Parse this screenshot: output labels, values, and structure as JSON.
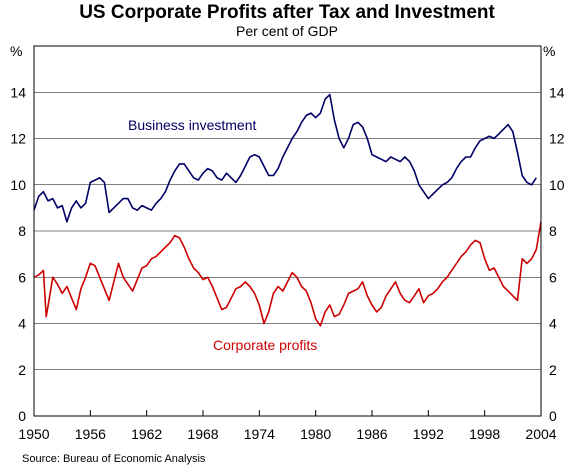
{
  "chart_data": {
    "type": "line",
    "title": "US Corporate Profits after Tax and Investment",
    "subtitle": "Per cent of GDP",
    "y_unit_left": "%",
    "y_unit_right": "%",
    "source": "Source: Bureau of Economic Analysis",
    "xlim": [
      1950,
      2004
    ],
    "ylim": [
      0,
      16
    ],
    "x_ticks": [
      "1950",
      "1956",
      "1962",
      "1968",
      "1974",
      "1980",
      "1986",
      "1992",
      "1998",
      "2004"
    ],
    "y_ticks": [
      "0",
      "2",
      "4",
      "6",
      "8",
      "10",
      "12",
      "14"
    ],
    "grid": true,
    "colors": {
      "investment": "#000066",
      "profits": "#cc0000",
      "grid": "#000000"
    },
    "series": [
      {
        "name": "Business investment",
        "key": "investment",
        "x": [
          1950.0,
          1950.5,
          1951.0,
          1951.5,
          1952.0,
          1952.5,
          1953.0,
          1953.5,
          1954.0,
          1954.5,
          1955.0,
          1955.5,
          1956.0,
          1956.5,
          1957.0,
          1957.5,
          1958.0,
          1958.5,
          1959.0,
          1959.5,
          1960.0,
          1960.5,
          1961.0,
          1961.5,
          1962.0,
          1962.5,
          1963.0,
          1963.5,
          1964.0,
          1964.5,
          1965.0,
          1965.5,
          1966.0,
          1966.5,
          1967.0,
          1967.5,
          1968.0,
          1968.5,
          1969.0,
          1969.5,
          1970.0,
          1970.5,
          1971.0,
          1971.5,
          1972.0,
          1972.5,
          1973.0,
          1973.5,
          1974.0,
          1974.5,
          1975.0,
          1975.5,
          1976.0,
          1976.5,
          1977.0,
          1977.5,
          1978.0,
          1978.5,
          1979.0,
          1979.5,
          1980.0,
          1980.5,
          1981.0,
          1981.5,
          1982.0,
          1982.5,
          1983.0,
          1983.5,
          1984.0,
          1984.5,
          1985.0,
          1985.5,
          1986.0,
          1986.5,
          1987.0,
          1987.5,
          1988.0,
          1988.5,
          1989.0,
          1989.5,
          1990.0,
          1990.5,
          1991.0,
          1991.5,
          1992.0,
          1992.5,
          1993.0,
          1993.5,
          1994.0,
          1994.5,
          1995.0,
          1995.5,
          1996.0,
          1996.5,
          1997.0,
          1997.5,
          1998.0,
          1998.5,
          1999.0,
          1999.5,
          2000.0,
          2000.5,
          2001.0,
          2001.5,
          2002.0,
          2002.5,
          2003.0,
          2003.5
        ],
        "values": [
          8.9,
          9.5,
          9.7,
          9.3,
          9.4,
          9.0,
          9.1,
          8.4,
          9.0,
          9.3,
          9.0,
          9.2,
          10.1,
          10.2,
          10.3,
          10.1,
          8.8,
          9.0,
          9.2,
          9.4,
          9.4,
          9.0,
          8.9,
          9.1,
          9.0,
          8.9,
          9.2,
          9.4,
          9.7,
          10.2,
          10.6,
          10.9,
          10.9,
          10.6,
          10.3,
          10.2,
          10.5,
          10.7,
          10.6,
          10.3,
          10.2,
          10.5,
          10.3,
          10.1,
          10.4,
          10.8,
          11.2,
          11.3,
          11.2,
          10.8,
          10.4,
          10.4,
          10.7,
          11.2,
          11.6,
          12.0,
          12.3,
          12.7,
          13.0,
          13.1,
          12.9,
          13.1,
          13.7,
          13.9,
          12.8,
          12.0,
          11.6,
          12.0,
          12.6,
          12.7,
          12.5,
          12.0,
          11.3,
          11.2,
          11.1,
          11.0,
          11.2,
          11.1,
          11.0,
          11.2,
          11.0,
          10.6,
          10.0,
          9.7,
          9.4,
          9.6,
          9.8,
          10.0,
          10.1,
          10.3,
          10.7,
          11.0,
          11.2,
          11.2,
          11.6,
          11.9,
          12.0,
          12.1,
          12.0,
          12.2,
          12.4,
          12.6,
          12.3,
          11.4,
          10.4,
          10.1,
          10.0,
          10.3
        ]
      },
      {
        "name": "Corporate profits",
        "key": "profits",
        "x": [
          1950.0,
          1950.5,
          1951.0,
          1951.3,
          1951.6,
          1952.0,
          1952.5,
          1953.0,
          1953.5,
          1954.0,
          1954.5,
          1955.0,
          1955.5,
          1956.0,
          1956.5,
          1957.0,
          1957.5,
          1958.0,
          1958.5,
          1959.0,
          1959.5,
          1960.0,
          1960.5,
          1961.0,
          1961.5,
          1962.0,
          1962.5,
          1963.0,
          1963.5,
          1964.0,
          1964.5,
          1965.0,
          1965.5,
          1966.0,
          1966.5,
          1967.0,
          1967.5,
          1968.0,
          1968.5,
          1969.0,
          1969.5,
          1970.0,
          1970.5,
          1971.0,
          1971.5,
          1972.0,
          1972.5,
          1973.0,
          1973.5,
          1974.0,
          1974.5,
          1975.0,
          1975.5,
          1976.0,
          1976.5,
          1977.0,
          1977.5,
          1978.0,
          1978.5,
          1979.0,
          1979.5,
          1980.0,
          1980.5,
          1981.0,
          1981.5,
          1982.0,
          1982.5,
          1983.0,
          1983.5,
          1984.0,
          1984.5,
          1985.0,
          1985.5,
          1986.0,
          1986.5,
          1987.0,
          1987.5,
          1988.0,
          1988.5,
          1989.0,
          1989.5,
          1990.0,
          1990.5,
          1991.0,
          1991.5,
          1992.0,
          1992.5,
          1993.0,
          1993.5,
          1994.0,
          1994.5,
          1995.0,
          1995.5,
          1996.0,
          1996.5,
          1997.0,
          1997.5,
          1998.0,
          1998.5,
          1999.0,
          1999.5,
          2000.0,
          2000.5,
          2001.0,
          2001.5,
          2002.0,
          2002.5,
          2003.0,
          2003.5,
          2004.0
        ],
        "values": [
          6.0,
          6.1,
          6.3,
          4.3,
          5.0,
          6.0,
          5.7,
          5.3,
          5.6,
          5.1,
          4.6,
          5.5,
          6.0,
          6.6,
          6.5,
          6.0,
          5.5,
          5.0,
          5.8,
          6.6,
          6.0,
          5.7,
          5.4,
          5.9,
          6.4,
          6.5,
          6.8,
          6.9,
          7.1,
          7.3,
          7.5,
          7.8,
          7.7,
          7.3,
          6.8,
          6.4,
          6.2,
          5.9,
          6.0,
          5.6,
          5.1,
          4.6,
          4.7,
          5.1,
          5.5,
          5.6,
          5.8,
          5.6,
          5.3,
          4.8,
          4.0,
          4.5,
          5.3,
          5.6,
          5.4,
          5.8,
          6.2,
          6.0,
          5.6,
          5.4,
          4.9,
          4.2,
          3.9,
          4.5,
          4.8,
          4.3,
          4.4,
          4.8,
          5.3,
          5.4,
          5.5,
          5.8,
          5.2,
          4.8,
          4.5,
          4.7,
          5.2,
          5.5,
          5.8,
          5.3,
          5.0,
          4.9,
          5.2,
          5.5,
          4.9,
          5.2,
          5.3,
          5.5,
          5.8,
          6.0,
          6.3,
          6.6,
          6.9,
          7.1,
          7.4,
          7.6,
          7.5,
          6.8,
          6.3,
          6.4,
          6.0,
          5.6,
          5.4,
          5.2,
          5.0,
          6.8,
          6.6,
          6.8,
          7.2,
          8.4
        ]
      }
    ],
    "annotations": [
      {
        "text": "Business investment",
        "series": "investment"
      },
      {
        "text": "Corporate profits",
        "series": "profits"
      }
    ]
  }
}
